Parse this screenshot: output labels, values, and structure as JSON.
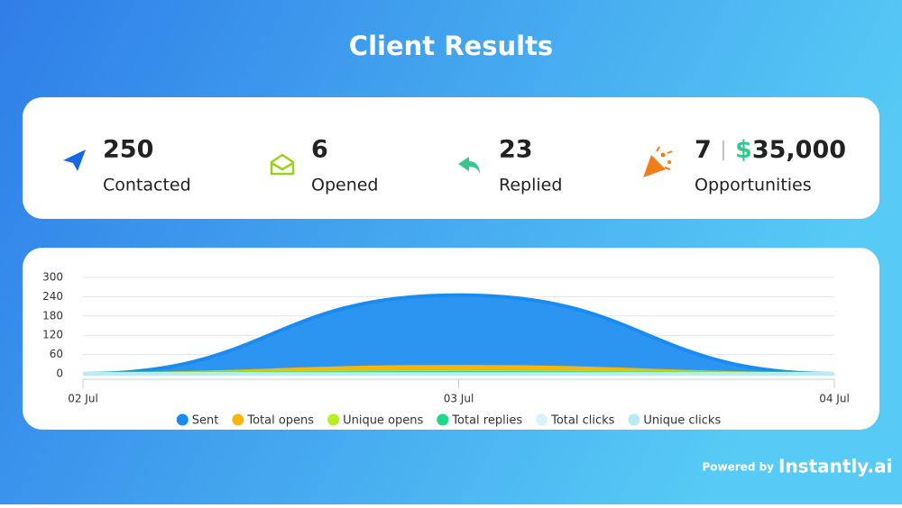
{
  "header": {
    "title": "Client Results"
  },
  "stats": [
    {
      "value": 250,
      "label": "Contacted"
    },
    {
      "value": 6,
      "label": "Opened"
    },
    {
      "value": 23,
      "label": "Replied"
    },
    {
      "value": 7,
      "separator": "|",
      "currency": "$",
      "amount": "35,000",
      "label": "Opportunities"
    }
  ],
  "chart_data": {
    "type": "area",
    "categories": [
      "02 Jul",
      "03 Jul",
      "04 Jul"
    ],
    "series": [
      {
        "name": "Sent",
        "color": "#1a8cf0",
        "values": [
          0,
          245,
          0
        ]
      },
      {
        "name": "Total opens",
        "color": "#f5b80a",
        "values": [
          0,
          22,
          0
        ]
      },
      {
        "name": "Unique opens",
        "color": "#b5f01f",
        "values": [
          0,
          6,
          0
        ]
      },
      {
        "name": "Total replies",
        "color": "#1ed98a",
        "values": [
          0,
          3,
          0
        ]
      },
      {
        "name": "Total clicks",
        "color": "#d8f3fb",
        "values": [
          0,
          0,
          0
        ]
      },
      {
        "name": "Unique clicks",
        "color": "#b8ebf8",
        "values": [
          0,
          0,
          0
        ]
      }
    ],
    "ylim": [
      0,
      300
    ],
    "yticks": [
      0,
      60,
      120,
      180,
      240,
      300
    ],
    "grid": true
  },
  "footer": {
    "prefix": "Powered by",
    "brand": "Instantly.ai"
  }
}
